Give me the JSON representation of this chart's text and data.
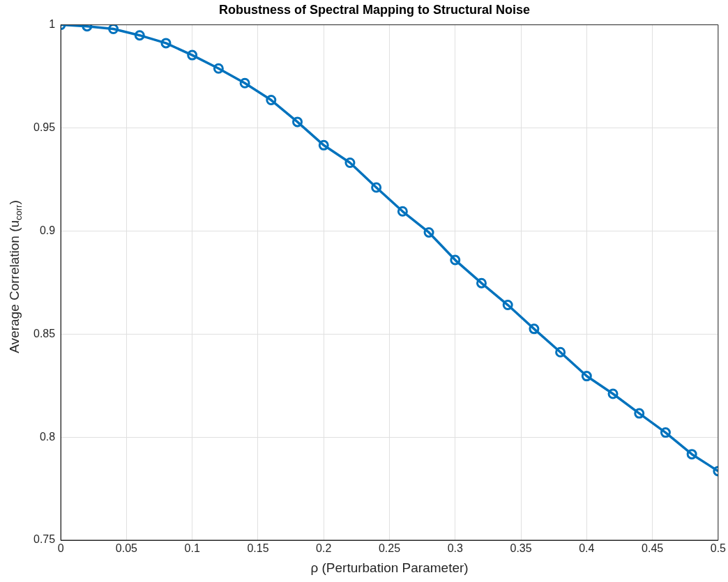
{
  "chart_data": {
    "type": "line",
    "title": "Robustness of Spectral Mapping to Structural Noise",
    "xlabel": "ρ (Perturbation Parameter)",
    "ylabel": "Average Correlation (u$_{corr}$)",
    "x": [
      0,
      0.02,
      0.04,
      0.06,
      0.08,
      0.1,
      0.12,
      0.14,
      0.16,
      0.18,
      0.2,
      0.22,
      0.24,
      0.26,
      0.28,
      0.3,
      0.32,
      0.34,
      0.36,
      0.38,
      0.4,
      0.42,
      0.44,
      0.46,
      0.48,
      0.5
    ],
    "series": [
      {
        "color": "#0072bd",
        "values": [
          1.0,
          0.9993,
          0.998,
          0.9949,
          0.9911,
          0.9853,
          0.9788,
          0.9717,
          0.9635,
          0.9529,
          0.9416,
          0.9331,
          0.9211,
          0.9095,
          0.8993,
          0.8859,
          0.8747,
          0.8641,
          0.8525,
          0.8412,
          0.8296,
          0.821,
          0.8115,
          0.8022,
          0.7917,
          0.7835
        ]
      }
    ],
    "xlim": [
      0,
      0.5
    ],
    "xticks": [
      0,
      0.05,
      0.1,
      0.15,
      0.2,
      0.25,
      0.3,
      0.35,
      0.4,
      0.45,
      0.5
    ],
    "ylim": [
      0.75,
      1
    ],
    "yticks": [
      0.75,
      0.8,
      0.85,
      0.9,
      0.95,
      1
    ],
    "grid": true,
    "legend": false,
    "marker": "circle",
    "line_style": "solid"
  }
}
